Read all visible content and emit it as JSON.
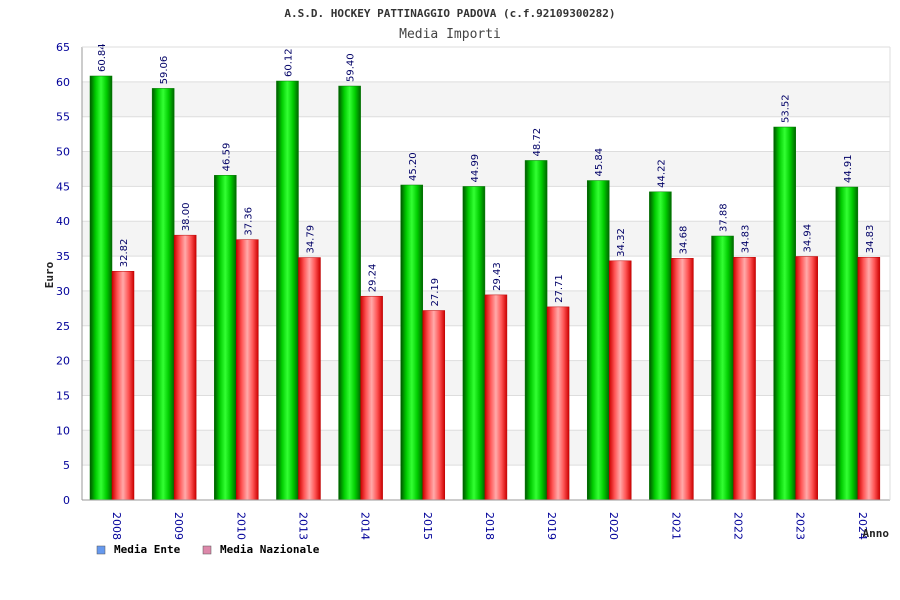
{
  "chart_data": {
    "type": "bar",
    "title": "A.S.D. HOCKEY PATTINAGGIO PADOVA (c.f.92109300282)",
    "subtitle": "Media Importi",
    "xlabel": "Anno",
    "ylabel": "Euro",
    "ylim": [
      0,
      65
    ],
    "ytick_step": 5,
    "grid": true,
    "legend_position": "bottom-left",
    "categories": [
      "2008",
      "2009",
      "2010",
      "2013",
      "2014",
      "2015",
      "2018",
      "2019",
      "2020",
      "2021",
      "2022",
      "2023",
      "2024"
    ],
    "series": [
      {
        "name": "Media Ente",
        "legend_color": "#6699ee",
        "bar_color": "#00aa00",
        "values": [
          60.84,
          59.06,
          46.59,
          60.12,
          59.4,
          45.2,
          44.99,
          48.72,
          45.84,
          44.22,
          37.88,
          53.52,
          44.91
        ],
        "value_labels": [
          "60.84",
          "59.06",
          "46.59",
          "60.12",
          "59.40",
          "45.20",
          "44.99",
          "48.72",
          "45.84",
          "44.22",
          "37.88",
          "53.52",
          "44.91"
        ]
      },
      {
        "name": "Media Nazionale",
        "legend_color": "#dd88aa",
        "bar_color": "#ee1111",
        "values": [
          32.82,
          38.0,
          37.36,
          34.79,
          29.24,
          27.19,
          29.43,
          27.71,
          34.32,
          34.68,
          34.83,
          34.94,
          34.83
        ],
        "value_labels": [
          "32.82",
          "38.00",
          "37.36",
          "34.79",
          "29.24",
          "27.19",
          "29.43",
          "27.71",
          "34.32",
          "34.68",
          "34.83",
          "34.94",
          "34.83"
        ]
      }
    ]
  }
}
